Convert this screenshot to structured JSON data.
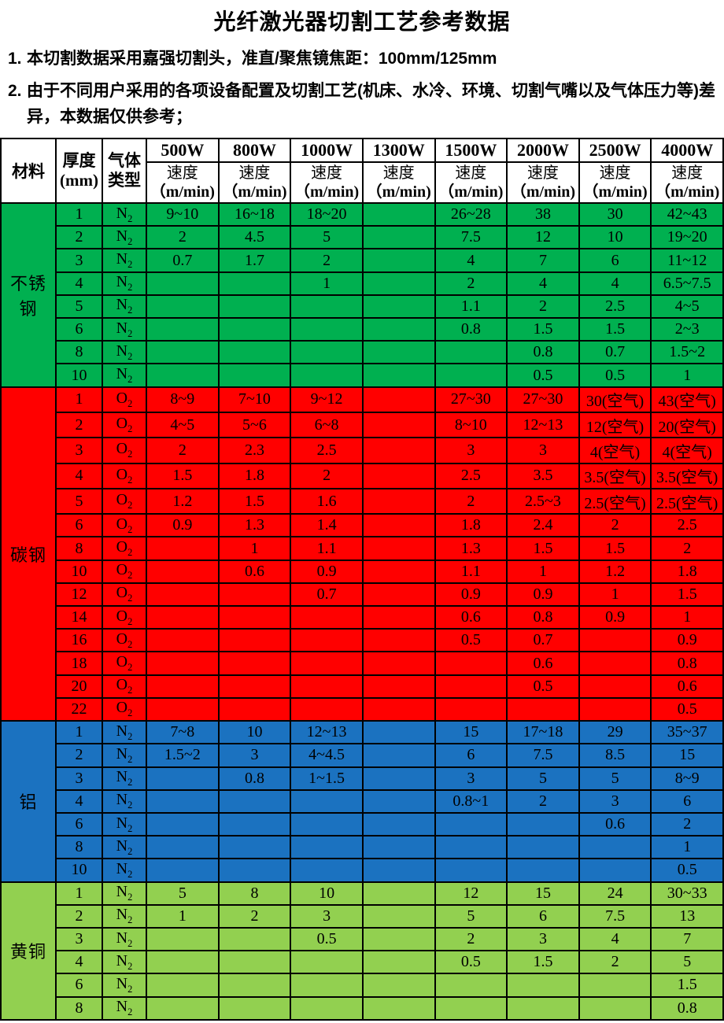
{
  "title": "光纤激光器切割工艺参考数据",
  "notes": [
    {
      "num": "1.",
      "text": "本切割数据采用嘉强切割头，准直/聚焦镜焦距：100mm/125mm"
    },
    {
      "num": "2.",
      "text": "由于不同用户采用的各项设备配置及切割工艺(机床、水冷、环境、切割气嘴以及气体压力等)差异，本数据仅供参考；"
    }
  ],
  "table": {
    "header": {
      "material": "材料",
      "thickness": [
        "厚度",
        "(mm)"
      ],
      "gas": [
        "气体",
        "类型"
      ],
      "powers": [
        "500W",
        "800W",
        "1000W",
        "1300W",
        "1500W",
        "2000W",
        "2500W",
        "4000W"
      ],
      "speed_label": [
        "速度",
        "（m/min)"
      ]
    },
    "sections": [
      {
        "material": "不锈钢",
        "bg": "#00B050",
        "gas_main": "N",
        "gas_sub": "2",
        "rows": [
          {
            "t": "1",
            "speeds": [
              "9~10",
              "16~18",
              "18~20",
              "",
              "26~28",
              "38",
              "30",
              "42~43"
            ]
          },
          {
            "t": "2",
            "speeds": [
              "2",
              "4.5",
              "5",
              "",
              "7.5",
              "12",
              "10",
              "19~20"
            ]
          },
          {
            "t": "3",
            "speeds": [
              "0.7",
              "1.7",
              "2",
              "",
              "4",
              "7",
              "6",
              "11~12"
            ]
          },
          {
            "t": "4",
            "speeds": [
              "",
              "",
              "1",
              "",
              "2",
              "4",
              "4",
              "6.5~7.5"
            ]
          },
          {
            "t": "5",
            "speeds": [
              "",
              "",
              "",
              "",
              "1.1",
              "2",
              "2.5",
              "4~5"
            ]
          },
          {
            "t": "6",
            "speeds": [
              "",
              "",
              "",
              "",
              "0.8",
              "1.5",
              "1.5",
              "2~3"
            ]
          },
          {
            "t": "8",
            "speeds": [
              "",
              "",
              "",
              "",
              "",
              "0.8",
              "0.7",
              "1.5~2"
            ]
          },
          {
            "t": "10",
            "speeds": [
              "",
              "",
              "",
              "",
              "",
              "0.5",
              "0.5",
              "1"
            ]
          }
        ]
      },
      {
        "material": "碳钢",
        "bg": "#FF0000",
        "gas_main": "O",
        "gas_sub": "2",
        "rows": [
          {
            "t": "1",
            "speeds": [
              "8~9",
              "7~10",
              "9~12",
              "",
              "27~30",
              "27~30",
              "30(空气)",
              "43(空气)"
            ]
          },
          {
            "t": "2",
            "speeds": [
              "4~5",
              "5~6",
              "6~8",
              "",
              "8~10",
              "12~13",
              "12(空气)",
              "20(空气)"
            ]
          },
          {
            "t": "3",
            "speeds": [
              "2",
              "2.3",
              "2.5",
              "",
              "3",
              "3",
              "4(空气)",
              "4(空气)"
            ]
          },
          {
            "t": "4",
            "speeds": [
              "1.5",
              "1.8",
              "2",
              "",
              "2.5",
              "3.5",
              "3.5(空气)",
              "3.5(空气)"
            ]
          },
          {
            "t": "5",
            "speeds": [
              "1.2",
              "1.5",
              "1.6",
              "",
              "2",
              "2.5~3",
              "2.5(空气)",
              "2.5(空气)"
            ]
          },
          {
            "t": "6",
            "speeds": [
              "0.9",
              "1.3",
              "1.4",
              "",
              "1.8",
              "2.4",
              "2",
              "2.5"
            ]
          },
          {
            "t": "8",
            "speeds": [
              "",
              "1",
              "1.1",
              "",
              "1.3",
              "1.5",
              "1.5",
              "2"
            ]
          },
          {
            "t": "10",
            "speeds": [
              "",
              "0.6",
              "0.9",
              "",
              "1.1",
              "1",
              "1.2",
              "1.8"
            ]
          },
          {
            "t": "12",
            "speeds": [
              "",
              "",
              "0.7",
              "",
              "0.9",
              "0.9",
              "1",
              "1.5"
            ]
          },
          {
            "t": "14",
            "speeds": [
              "",
              "",
              "",
              "",
              "0.6",
              "0.8",
              "0.9",
              "1"
            ]
          },
          {
            "t": "16",
            "speeds": [
              "",
              "",
              "",
              "",
              "0.5",
              "0.7",
              "",
              "0.9"
            ]
          },
          {
            "t": "18",
            "speeds": [
              "",
              "",
              "",
              "",
              "",
              "0.6",
              "",
              "0.8"
            ]
          },
          {
            "t": "20",
            "speeds": [
              "",
              "",
              "",
              "",
              "",
              "0.5",
              "",
              "0.6"
            ]
          },
          {
            "t": "22",
            "speeds": [
              "",
              "",
              "",
              "",
              "",
              "",
              "",
              "0.5"
            ]
          }
        ]
      },
      {
        "material": "铝",
        "bg": "#1B72C0",
        "gas_main": "N",
        "gas_sub": "2",
        "rows": [
          {
            "t": "1",
            "speeds": [
              "7~8",
              "10",
              "12~13",
              "",
              "15",
              "17~18",
              "29",
              "35~37"
            ]
          },
          {
            "t": "2",
            "speeds": [
              "1.5~2",
              "3",
              "4~4.5",
              "",
              "6",
              "7.5",
              "8.5",
              "15"
            ]
          },
          {
            "t": "3",
            "speeds": [
              "",
              "0.8",
              "1~1.5",
              "",
              "3",
              "5",
              "5",
              "8~9"
            ]
          },
          {
            "t": "4",
            "speeds": [
              "",
              "",
              "",
              "",
              "0.8~1",
              "2",
              "3",
              "6"
            ]
          },
          {
            "t": "6",
            "speeds": [
              "",
              "",
              "",
              "",
              "",
              "",
              "0.6",
              "2"
            ]
          },
          {
            "t": "8",
            "speeds": [
              "",
              "",
              "",
              "",
              "",
              "",
              "",
              "1"
            ]
          },
          {
            "t": "10",
            "speeds": [
              "",
              "",
              "",
              "",
              "",
              "",
              "",
              "0.5"
            ]
          }
        ]
      },
      {
        "material": "黄铜",
        "bg": "#92D050",
        "gas_main": "N",
        "gas_sub": "2",
        "rows": [
          {
            "t": "1",
            "speeds": [
              "5",
              "8",
              "10",
              "",
              "12",
              "15",
              "24",
              "30~33"
            ]
          },
          {
            "t": "2",
            "speeds": [
              "1",
              "2",
              "3",
              "",
              "5",
              "6",
              "7.5",
              "13"
            ]
          },
          {
            "t": "3",
            "speeds": [
              "",
              "",
              "0.5",
              "",
              "2",
              "3",
              "4",
              "7"
            ]
          },
          {
            "t": "4",
            "speeds": [
              "",
              "",
              "",
              "",
              "0.5",
              "1.5",
              "2",
              "5"
            ]
          },
          {
            "t": "6",
            "speeds": [
              "",
              "",
              "",
              "",
              "",
              "",
              "",
              "1.5"
            ]
          },
          {
            "t": "8",
            "speeds": [
              "",
              "",
              "",
              "",
              "",
              "",
              "",
              "0.8"
            ]
          }
        ]
      }
    ]
  }
}
